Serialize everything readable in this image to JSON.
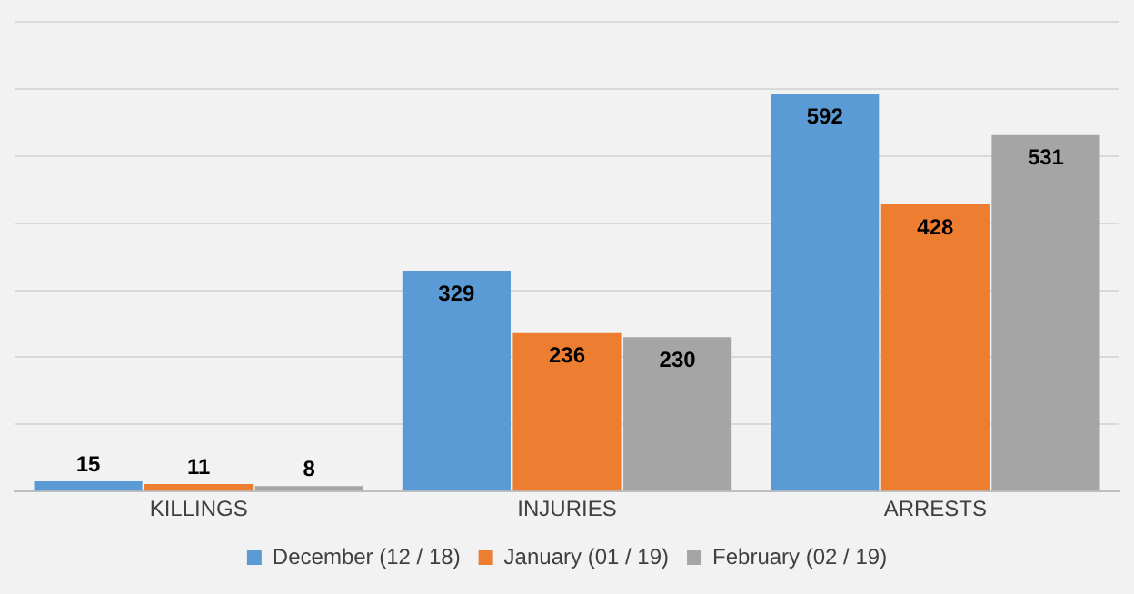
{
  "chart_data": {
    "type": "bar",
    "categories": [
      "KILLINGS",
      "INJURIES",
      "ARRESTS"
    ],
    "series": [
      {
        "name": "December (12 / 18)",
        "color": "#5b9bd5",
        "values": [
          15,
          329,
          592
        ]
      },
      {
        "name": "January (01 / 19)",
        "color": "#ed7d31",
        "values": [
          11,
          236,
          428
        ]
      },
      {
        "name": "February (02 / 19)",
        "color": "#a5a5a5",
        "values": [
          8,
          230,
          531
        ]
      }
    ],
    "ylim": [
      0,
      700
    ],
    "yticks": [
      {
        "value": 0,
        "label": null
      },
      {
        "value": 100,
        "label": null
      },
      {
        "value": 200,
        "label": null
      },
      {
        "value": 300,
        "label": null
      },
      {
        "value": 400,
        "label": null
      },
      {
        "value": 500,
        "label": null
      },
      {
        "value": 600,
        "label": null
      },
      {
        "value": 700,
        "label": null
      }
    ],
    "tick_labels": "x",
    "grid": "y",
    "legend": "bottom",
    "data_labels": true
  }
}
